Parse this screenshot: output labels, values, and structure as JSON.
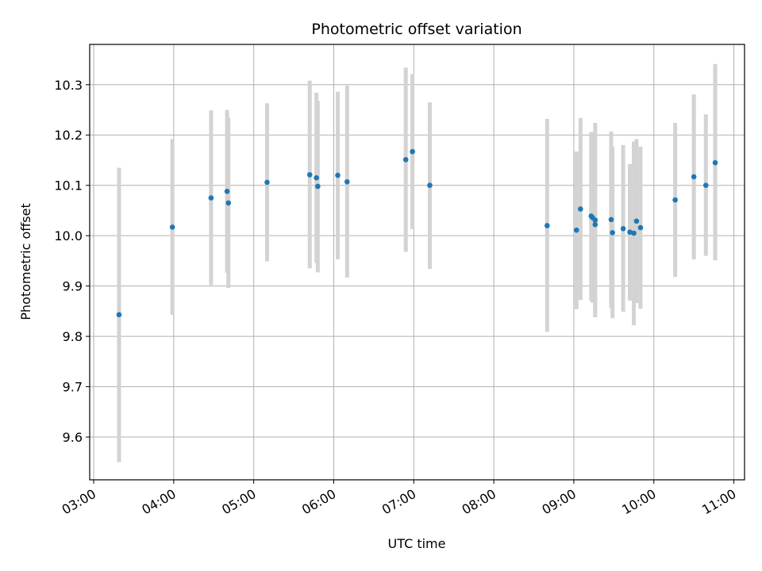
{
  "chart_data": {
    "type": "scatter",
    "title": "Photometric offset variation",
    "xlabel": "UTC time",
    "ylabel": "Photometric offset",
    "x_ticks": [
      "03:00",
      "04:00",
      "05:00",
      "06:00",
      "07:00",
      "08:00",
      "09:00",
      "10:00",
      "11:00"
    ],
    "y_ticks": [
      "9.6",
      "9.7",
      "9.8",
      "9.9",
      "10.0",
      "10.1",
      "10.2",
      "10.3"
    ],
    "xlim": [
      "02:57",
      "11:08"
    ],
    "ylim": [
      9.515,
      10.38
    ],
    "grid": true,
    "colors": {
      "point": "#1f77b4",
      "errorbar": "#d3d3d3",
      "grid": "#b0b0b0"
    },
    "points": [
      {
        "time": "03:19",
        "y": 9.843,
        "low": 9.55,
        "high": 10.135
      },
      {
        "time": "03:59",
        "y": 10.017,
        "low": 9.843,
        "high": 10.192
      },
      {
        "time": "04:28",
        "y": 10.075,
        "low": 9.902,
        "high": 10.249
      },
      {
        "time": "04:40",
        "y": 10.088,
        "low": 9.926,
        "high": 10.25
      },
      {
        "time": "04:41",
        "y": 10.065,
        "low": 9.896,
        "high": 10.234
      },
      {
        "time": "05:10",
        "y": 10.106,
        "low": 9.949,
        "high": 10.263
      },
      {
        "time": "05:42",
        "y": 10.121,
        "low": 9.935,
        "high": 10.308
      },
      {
        "time": "05:47",
        "y": 10.115,
        "low": 9.946,
        "high": 10.284
      },
      {
        "time": "05:48",
        "y": 10.098,
        "low": 9.927,
        "high": 10.268
      },
      {
        "time": "06:03",
        "y": 10.12,
        "low": 9.953,
        "high": 10.286
      },
      {
        "time": "06:10",
        "y": 10.107,
        "low": 9.917,
        "high": 10.298
      },
      {
        "time": "06:54",
        "y": 10.151,
        "low": 9.968,
        "high": 10.334
      },
      {
        "time": "06:59",
        "y": 10.167,
        "low": 10.013,
        "high": 10.321
      },
      {
        "time": "07:12",
        "y": 10.1,
        "low": 9.934,
        "high": 10.265
      },
      {
        "time": "08:40",
        "y": 10.02,
        "low": 9.809,
        "high": 10.232
      },
      {
        "time": "09:02",
        "y": 10.011,
        "low": 9.854,
        "high": 10.167
      },
      {
        "time": "09:05",
        "y": 10.053,
        "low": 9.872,
        "high": 10.234
      },
      {
        "time": "09:13",
        "y": 10.039,
        "low": 9.871,
        "high": 10.206
      },
      {
        "time": "09:14",
        "y": 10.036,
        "low": 9.867,
        "high": 10.205
      },
      {
        "time": "09:16",
        "y": 10.031,
        "low": 9.838,
        "high": 10.224
      },
      {
        "time": "09:16",
        "y": 10.022,
        "low": 9.838,
        "high": 10.206
      },
      {
        "time": "09:28",
        "y": 10.032,
        "low": 9.857,
        "high": 10.207
      },
      {
        "time": "09:29",
        "y": 10.006,
        "low": 9.836,
        "high": 10.177
      },
      {
        "time": "09:37",
        "y": 10.014,
        "low": 9.849,
        "high": 10.18
      },
      {
        "time": "09:42",
        "y": 10.007,
        "low": 9.871,
        "high": 10.142
      },
      {
        "time": "09:45",
        "y": 10.005,
        "low": 9.822,
        "high": 10.187
      },
      {
        "time": "09:47",
        "y": 10.029,
        "low": 9.866,
        "high": 10.192
      },
      {
        "time": "09:50",
        "y": 10.016,
        "low": 9.855,
        "high": 10.177
      },
      {
        "time": "10:16",
        "y": 10.071,
        "low": 9.918,
        "high": 10.224
      },
      {
        "time": "10:30",
        "y": 10.117,
        "low": 9.953,
        "high": 10.281
      },
      {
        "time": "10:39",
        "y": 10.1,
        "low": 9.96,
        "high": 10.241
      },
      {
        "time": "10:46",
        "y": 10.145,
        "low": 9.951,
        "high": 10.341
      }
    ]
  }
}
